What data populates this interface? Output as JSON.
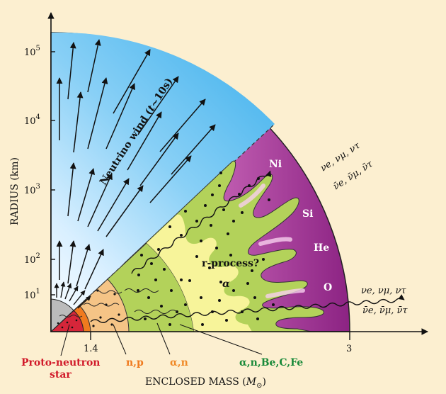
{
  "axes": {
    "y_title": "RADIUS (km)",
    "x_title_text": "ENCLOSED MASS (",
    "x_title_symbol": "M",
    "x_title_sub": "⊙",
    "x_title_close": ")",
    "y_ticks": [
      {
        "base": "10",
        "exp": "5"
      },
      {
        "base": "10",
        "exp": "4"
      },
      {
        "base": "10",
        "exp": "3"
      },
      {
        "base": "10",
        "exp": "2"
      },
      {
        "base": "10",
        "exp": "1"
      }
    ],
    "x_ticks": [
      "1.4",
      "3"
    ]
  },
  "labels": {
    "wind": "Neutrino wind (",
    "wind_t": "t",
    "wind_rest": "~10s)",
    "ni": "Ni",
    "si": "Si",
    "he": "He",
    "o": "O",
    "rprocess": "r-process?",
    "alpha": "α",
    "nu_top_1": "νe, νμ, ντ",
    "nu_top_2": "ν̄e, ν̄μ, ν̄τ",
    "nu_mid_1": "νe, νμ, ντ",
    "nu_mid_2": "ν̄e, ν̄μ, ν̄τ",
    "pns_1": "Proto-neutron",
    "pns_2": "star",
    "np": "n,p",
    "an": "α,n",
    "anbe": "α,n,Be,C,Fe"
  },
  "colors": {
    "wind_blue": "#5bbef0",
    "outer_purple": "#9a2f8e",
    "green_zone": "#b3d25a",
    "yellow_zone": "#f7f49a",
    "orange_zone": "#f5c486",
    "red_core": "#d6263a",
    "pns_label": "#d11a2a",
    "np_label": "#f07a1e",
    "alpha_label": "#f08a28",
    "anbe_label": "#1a8a3a"
  }
}
